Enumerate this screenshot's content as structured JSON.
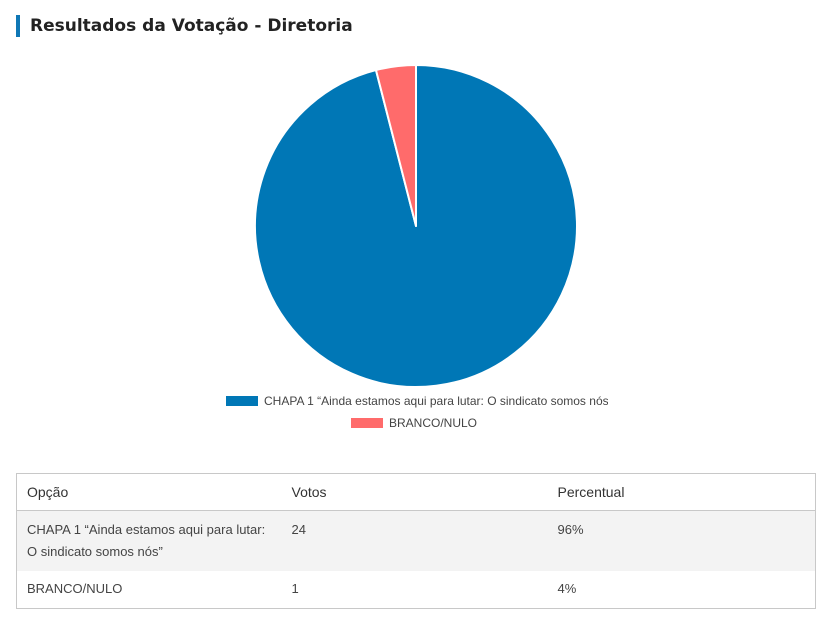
{
  "page": {
    "title": "Resultados da Votação - Diretoria"
  },
  "chart_data": {
    "type": "pie",
    "title": "Resultados da Votação - Diretoria",
    "labels": [
      "CHAPA 1 “Ainda estamos aqui para lutar: O sindicato somos nós”",
      "BRANCO/NULO"
    ],
    "legend_labels": [
      "CHAPA 1 “Ainda estamos aqui para lutar: O sindicato somos nós",
      "BRANCO/NULO"
    ],
    "values": [
      24,
      1
    ],
    "colors": [
      "#0077b6",
      "#ff6b6b"
    ],
    "legend_position": "bottom"
  },
  "table": {
    "headers": [
      "Opção",
      "Votos",
      "Percentual"
    ],
    "rows": [
      {
        "option": "CHAPA 1 “Ainda estamos aqui para lutar: O sindicato somos nós”",
        "votes": "24",
        "percent": "96%"
      },
      {
        "option": "BRANCO/NULO",
        "votes": "1",
        "percent": "4%"
      }
    ]
  }
}
